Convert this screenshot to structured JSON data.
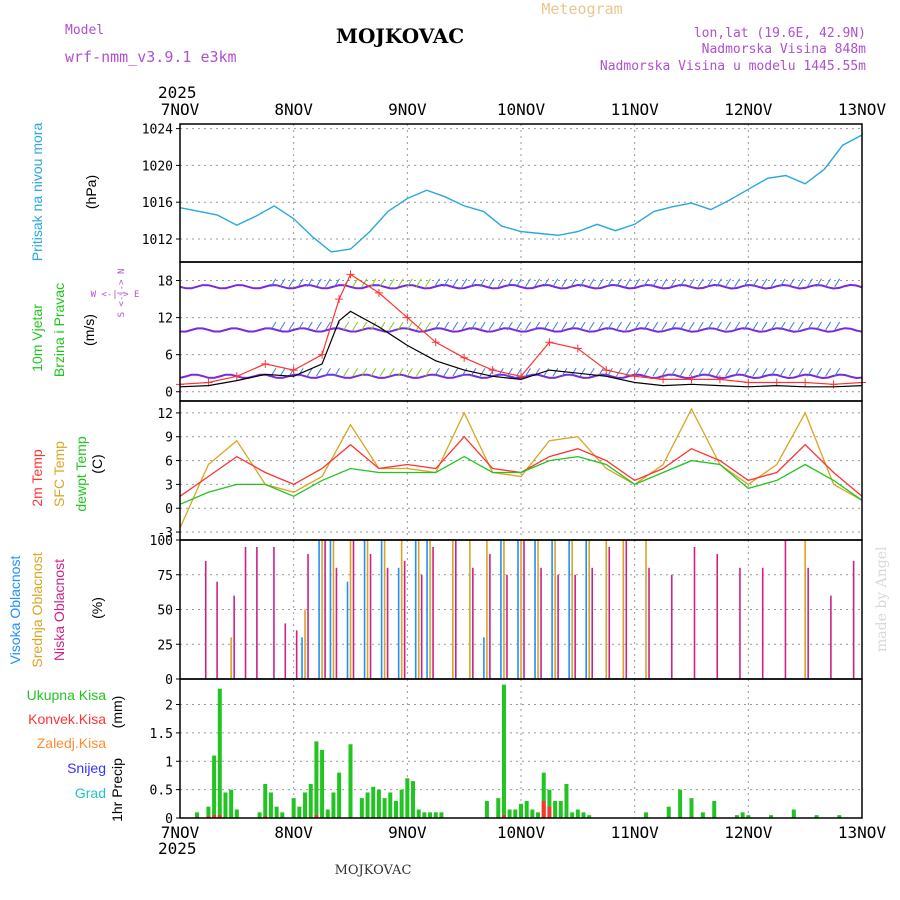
{
  "header": {
    "model_label": "Model",
    "model_name": "wrf-nmm_v3.9.1 e3km",
    "title": "MOJKOVAC",
    "meteogram_label": "Meteogram",
    "lonlat": "lon,lat (19.6E, 42.9N)",
    "elevation": "Nadmorska Visina 848m",
    "model_elevation": "Nadmorska Visina u modelu 1445.55m",
    "year_top": "2025",
    "year_bottom": "2025",
    "bottom_title": "MOJKOVAC",
    "watermark": "made by Angel",
    "compass_we": "W <-|-> E",
    "compass_sn": "S <-|-> N"
  },
  "colors": {
    "pressure": "#29a8e0",
    "wind_label": "#22c422",
    "wind_arrow": "#7a2ad8",
    "temp2m": "#ff3333",
    "sfc": "#daa520",
    "dewpt": "#22c422",
    "cloud_high": "#1e90ff",
    "cloud_mid": "#daa520",
    "cloud_low": "#cc2288",
    "precip_total": "#22c422",
    "precip_conv": "#ff3333",
    "precip_frz": "#ff8c33",
    "precip_snow": "#3333ff",
    "precip_grad": "#22c4c4"
  },
  "chart_data": [
    {
      "type": "line",
      "panel": "pressure",
      "ylabel": "Pritisak na nivou mora",
      "unit": "(hPa)",
      "x_categories": [
        "7NOV",
        "8NOV",
        "9NOV",
        "10NOV",
        "11NOV",
        "12NOV",
        "13NOV"
      ],
      "yticks": [
        1012,
        1016,
        1020,
        1024
      ],
      "ylim": [
        1009.5,
        1024.5
      ],
      "x_days": [
        0,
        0.17,
        0.33,
        0.5,
        0.67,
        0.83,
        1.0,
        1.17,
        1.33,
        1.5,
        1.67,
        1.83,
        2.0,
        2.17,
        2.33,
        2.5,
        2.67,
        2.83,
        3.0,
        3.17,
        3.33,
        3.5,
        3.67,
        3.83,
        4.0,
        4.17,
        4.33,
        4.5,
        4.67,
        4.83,
        5.0,
        5.17,
        5.33,
        5.5,
        5.67,
        5.83,
        6.0
      ],
      "series": [
        {
          "name": "MSLP",
          "values": [
            1015.4,
            1015.0,
            1014.6,
            1013.5,
            1014.5,
            1015.6,
            1014.2,
            1012.2,
            1010.6,
            1010.9,
            1012.8,
            1015.0,
            1016.4,
            1017.3,
            1016.6,
            1015.6,
            1015.0,
            1013.4,
            1012.8,
            1012.6,
            1012.4,
            1012.8,
            1013.6,
            1012.9,
            1013.6,
            1015.0,
            1015.5,
            1015.9,
            1015.2,
            1016.2,
            1017.4,
            1018.6,
            1018.9,
            1018.0,
            1019.6,
            1022.2,
            1023.3
          ]
        }
      ]
    },
    {
      "type": "line",
      "panel": "wind",
      "ylabel_1": "10m Vjetar",
      "ylabel_2": "Brzina i Pravac",
      "unit": "(m/s)",
      "yticks": [
        0,
        6,
        12,
        18
      ],
      "ylim": [
        -1.5,
        21
      ],
      "x_days": [
        0,
        0.25,
        0.5,
        0.75,
        1.0,
        1.25,
        1.4,
        1.5,
        1.75,
        2.0,
        2.25,
        2.5,
        2.75,
        3.0,
        3.25,
        3.5,
        3.75,
        4.0,
        4.25,
        4.5,
        4.75,
        5.0,
        5.25,
        5.5,
        5.75,
        6.0
      ],
      "series": [
        {
          "name": "Brzina (crna)",
          "values": [
            0.8,
            1.0,
            1.8,
            2.8,
            2.5,
            4.5,
            11.5,
            13.0,
            10.5,
            7.5,
            5.0,
            3.5,
            2.5,
            2.0,
            3.5,
            3.0,
            2.5,
            1.5,
            1.0,
            1.2,
            1.0,
            0.8,
            1.0,
            0.8,
            0.8,
            1.0
          ]
        },
        {
          "name": "Udari (crvena)",
          "values": [
            1.2,
            1.5,
            2.5,
            4.5,
            3.5,
            6.0,
            15.0,
            19.0,
            16.0,
            12.0,
            8.0,
            5.5,
            3.5,
            2.5,
            8.0,
            7.0,
            3.5,
            2.5,
            2.0,
            2.0,
            2.0,
            1.5,
            1.5,
            1.5,
            1.2,
            1.5
          ]
        }
      ]
    },
    {
      "type": "line",
      "panel": "temperature",
      "ylabel_1": "2m Temp",
      "ylabel_2": "SFC Temp",
      "ylabel_3": "dewpt Temp",
      "unit": "(C)",
      "yticks": [
        -3,
        0,
        3,
        6,
        9,
        12
      ],
      "ylim": [
        -4,
        13.5
      ],
      "x_days": [
        0,
        0.25,
        0.5,
        0.75,
        1.0,
        1.25,
        1.5,
        1.75,
        2.0,
        2.25,
        2.5,
        2.75,
        3.0,
        3.25,
        3.5,
        3.75,
        4.0,
        4.25,
        4.5,
        4.75,
        5.0,
        5.25,
        5.5,
        5.75,
        6.0
      ],
      "series": [
        {
          "name": "2m Temp",
          "values": [
            1.5,
            4.0,
            6.5,
            4.5,
            3.0,
            5.0,
            8.0,
            5.0,
            5.5,
            5.0,
            9.0,
            5.0,
            4.5,
            6.5,
            7.5,
            6.0,
            3.5,
            5.0,
            7.5,
            6.0,
            3.5,
            4.5,
            8.0,
            4.5,
            1.5
          ]
        },
        {
          "name": "SFC Temp",
          "values": [
            -2.5,
            5.5,
            8.5,
            3.0,
            2.0,
            4.0,
            10.5,
            5.0,
            5.0,
            4.5,
            12.0,
            4.5,
            4.0,
            8.5,
            9.0,
            5.0,
            3.0,
            5.5,
            12.5,
            5.5,
            3.0,
            5.5,
            12.0,
            3.0,
            1.0
          ]
        },
        {
          "name": "dewpt Temp",
          "values": [
            0.5,
            2.0,
            3.0,
            3.0,
            1.5,
            3.5,
            5.0,
            4.5,
            4.5,
            4.5,
            6.5,
            4.5,
            4.5,
            6.0,
            6.5,
            5.5,
            3.0,
            4.5,
            6.0,
            5.5,
            2.5,
            3.5,
            5.5,
            3.5,
            1.0
          ]
        }
      ]
    },
    {
      "type": "bar",
      "panel": "clouds",
      "ylabel_1": "Visoka Oblacnost",
      "ylabel_2": "Srednja Oblacnost",
      "ylabel_3": "Niska Oblacnost",
      "unit": "(%)",
      "yticks": [
        0,
        25,
        50,
        75,
        100
      ],
      "ylim": [
        0,
        100
      ],
      "x_days": [
        0.2,
        0.3,
        0.45,
        0.55,
        0.65,
        0.8,
        0.9,
        1.0,
        1.1,
        1.25,
        1.35,
        1.5,
        1.65,
        1.8,
        1.95,
        2.1,
        2.2,
        2.4,
        2.55,
        2.7,
        2.85,
        3.0,
        3.15,
        3.3,
        3.45,
        3.6,
        3.75,
        3.9,
        4.1,
        4.3,
        4.5,
        4.7,
        4.9,
        5.1,
        5.3,
        5.5,
        5.7,
        5.9
      ],
      "series": [
        {
          "name": "Visoka",
          "values": [
            0,
            0,
            0,
            0,
            0,
            0,
            0,
            0,
            30,
            100,
            100,
            70,
            100,
            100,
            80,
            100,
            100,
            0,
            0,
            30,
            100,
            100,
            100,
            100,
            100,
            100,
            0,
            0,
            0,
            0,
            0,
            0,
            0,
            0,
            0,
            0,
            0,
            0
          ]
        },
        {
          "name": "Srednja",
          "values": [
            0,
            0,
            30,
            0,
            0,
            0,
            0,
            0,
            50,
            100,
            100,
            100,
            100,
            100,
            100,
            100,
            100,
            100,
            100,
            100,
            100,
            100,
            100,
            100,
            100,
            100,
            100,
            100,
            100,
            0,
            0,
            0,
            0,
            0,
            0,
            100,
            0,
            0
          ]
        },
        {
          "name": "Niska",
          "values": [
            85,
            70,
            60,
            95,
            95,
            95,
            40,
            35,
            90,
            100,
            80,
            100,
            90,
            80,
            85,
            75,
            95,
            100,
            80,
            90,
            75,
            100,
            80,
            75,
            75,
            80,
            95,
            100,
            80,
            75,
            95,
            90,
            80,
            80,
            100,
            80,
            60,
            85
          ]
        }
      ]
    },
    {
      "type": "bar",
      "panel": "precip",
      "ylabel": "1hr Precip",
      "unit": "(mm)",
      "legend": [
        "Ukupna Kisa",
        "Konvek.Kisa",
        "Zaledj.Kisa",
        "Snijeg",
        "Grad"
      ],
      "yticks": [
        0,
        0.5,
        1,
        1.5,
        2
      ],
      "ytick_labels": [
        "0",
        "0.5",
        "1",
        "1.5",
        "2"
      ],
      "ylim": [
        0,
        2.45
      ],
      "x_categories": [
        "7NOV",
        "8NOV",
        "9NOV",
        "10NOV",
        "11NOV",
        "12NOV",
        "13NOV"
      ],
      "x_days": [
        0.15,
        0.25,
        0.3,
        0.35,
        0.4,
        0.45,
        0.5,
        0.7,
        0.75,
        0.8,
        0.85,
        0.9,
        1.0,
        1.05,
        1.1,
        1.15,
        1.2,
        1.25,
        1.3,
        1.35,
        1.4,
        1.5,
        1.6,
        1.65,
        1.7,
        1.75,
        1.8,
        1.85,
        1.9,
        1.95,
        2.0,
        2.05,
        2.1,
        2.15,
        2.2,
        2.25,
        2.3,
        2.7,
        2.8,
        2.85,
        2.9,
        2.95,
        3.0,
        3.05,
        3.1,
        3.15,
        3.2,
        3.25,
        3.3,
        3.35,
        3.4,
        3.45,
        3.5,
        3.55,
        3.6,
        4.1,
        4.3,
        4.4,
        4.5,
        4.6,
        4.7,
        4.9,
        4.95,
        5.0,
        5.2,
        5.4,
        5.6,
        5.8
      ],
      "series": [
        {
          "name": "Ukupna Kisa",
          "values": [
            0.1,
            0.2,
            1.1,
            2.28,
            0.45,
            0.5,
            0.15,
            0.1,
            0.6,
            0.45,
            0.2,
            0.1,
            0.35,
            0.2,
            0.45,
            0.6,
            1.35,
            1.2,
            0.15,
            0.45,
            0.8,
            1.3,
            0.35,
            0.45,
            0.55,
            0.5,
            0.35,
            0.45,
            0.3,
            0.5,
            0.7,
            0.65,
            0.15,
            0.1,
            0.1,
            0.1,
            0.1,
            0.3,
            0.35,
            2.35,
            0.15,
            0.15,
            0.25,
            0.3,
            0.15,
            0.1,
            0.8,
            0.5,
            0.3,
            0.3,
            0.6,
            0.1,
            0.15,
            0.1,
            0.05,
            0.1,
            0.2,
            0.5,
            0.35,
            0.1,
            0.3,
            0.05,
            0.1,
            0.05,
            0.05,
            0.15,
            0.05,
            0.05
          ]
        },
        {
          "name": "Konvek.Kisa",
          "values": [
            0.02,
            0.03,
            0.05,
            0.05,
            0,
            0,
            0,
            0,
            0.03,
            0,
            0,
            0,
            0,
            0,
            0,
            0,
            0.05,
            0,
            0,
            0,
            0,
            0,
            0,
            0,
            0,
            0,
            0,
            0,
            0,
            0,
            0,
            0,
            0,
            0,
            0,
            0,
            0,
            0,
            0,
            0.05,
            0,
            0,
            0,
            0,
            0,
            0,
            0.3,
            0.2,
            0,
            0,
            0,
            0,
            0,
            0,
            0,
            0,
            0,
            0,
            0,
            0,
            0,
            0,
            0,
            0,
            0,
            0,
            0,
            0
          ]
        }
      ]
    }
  ]
}
